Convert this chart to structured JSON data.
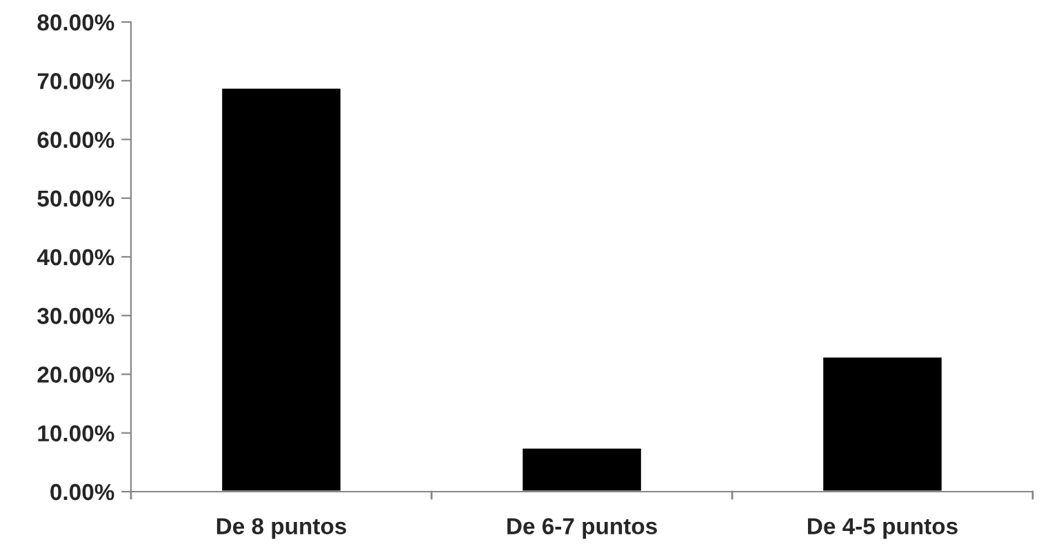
{
  "chart_data": {
    "type": "bar",
    "categories": [
      "De 8 puntos",
      "De 6-7 puntos",
      "De 4-5 puntos"
    ],
    "values": [
      68.8,
      7.5,
      23.0
    ],
    "color": "#000000",
    "ylim": [
      0,
      80
    ],
    "yticks": [
      {
        "value": 0,
        "label": "0.00%"
      },
      {
        "value": 10,
        "label": "10.00%"
      },
      {
        "value": 20,
        "label": "20.00%"
      },
      {
        "value": 30,
        "label": "30.00%"
      },
      {
        "value": 40,
        "label": "40.00%"
      },
      {
        "value": 50,
        "label": "50.00%"
      },
      {
        "value": 60,
        "label": "60.00%"
      },
      {
        "value": 70,
        "label": "70.00%"
      },
      {
        "value": 80,
        "label": "80.00%"
      }
    ],
    "grid": false
  }
}
